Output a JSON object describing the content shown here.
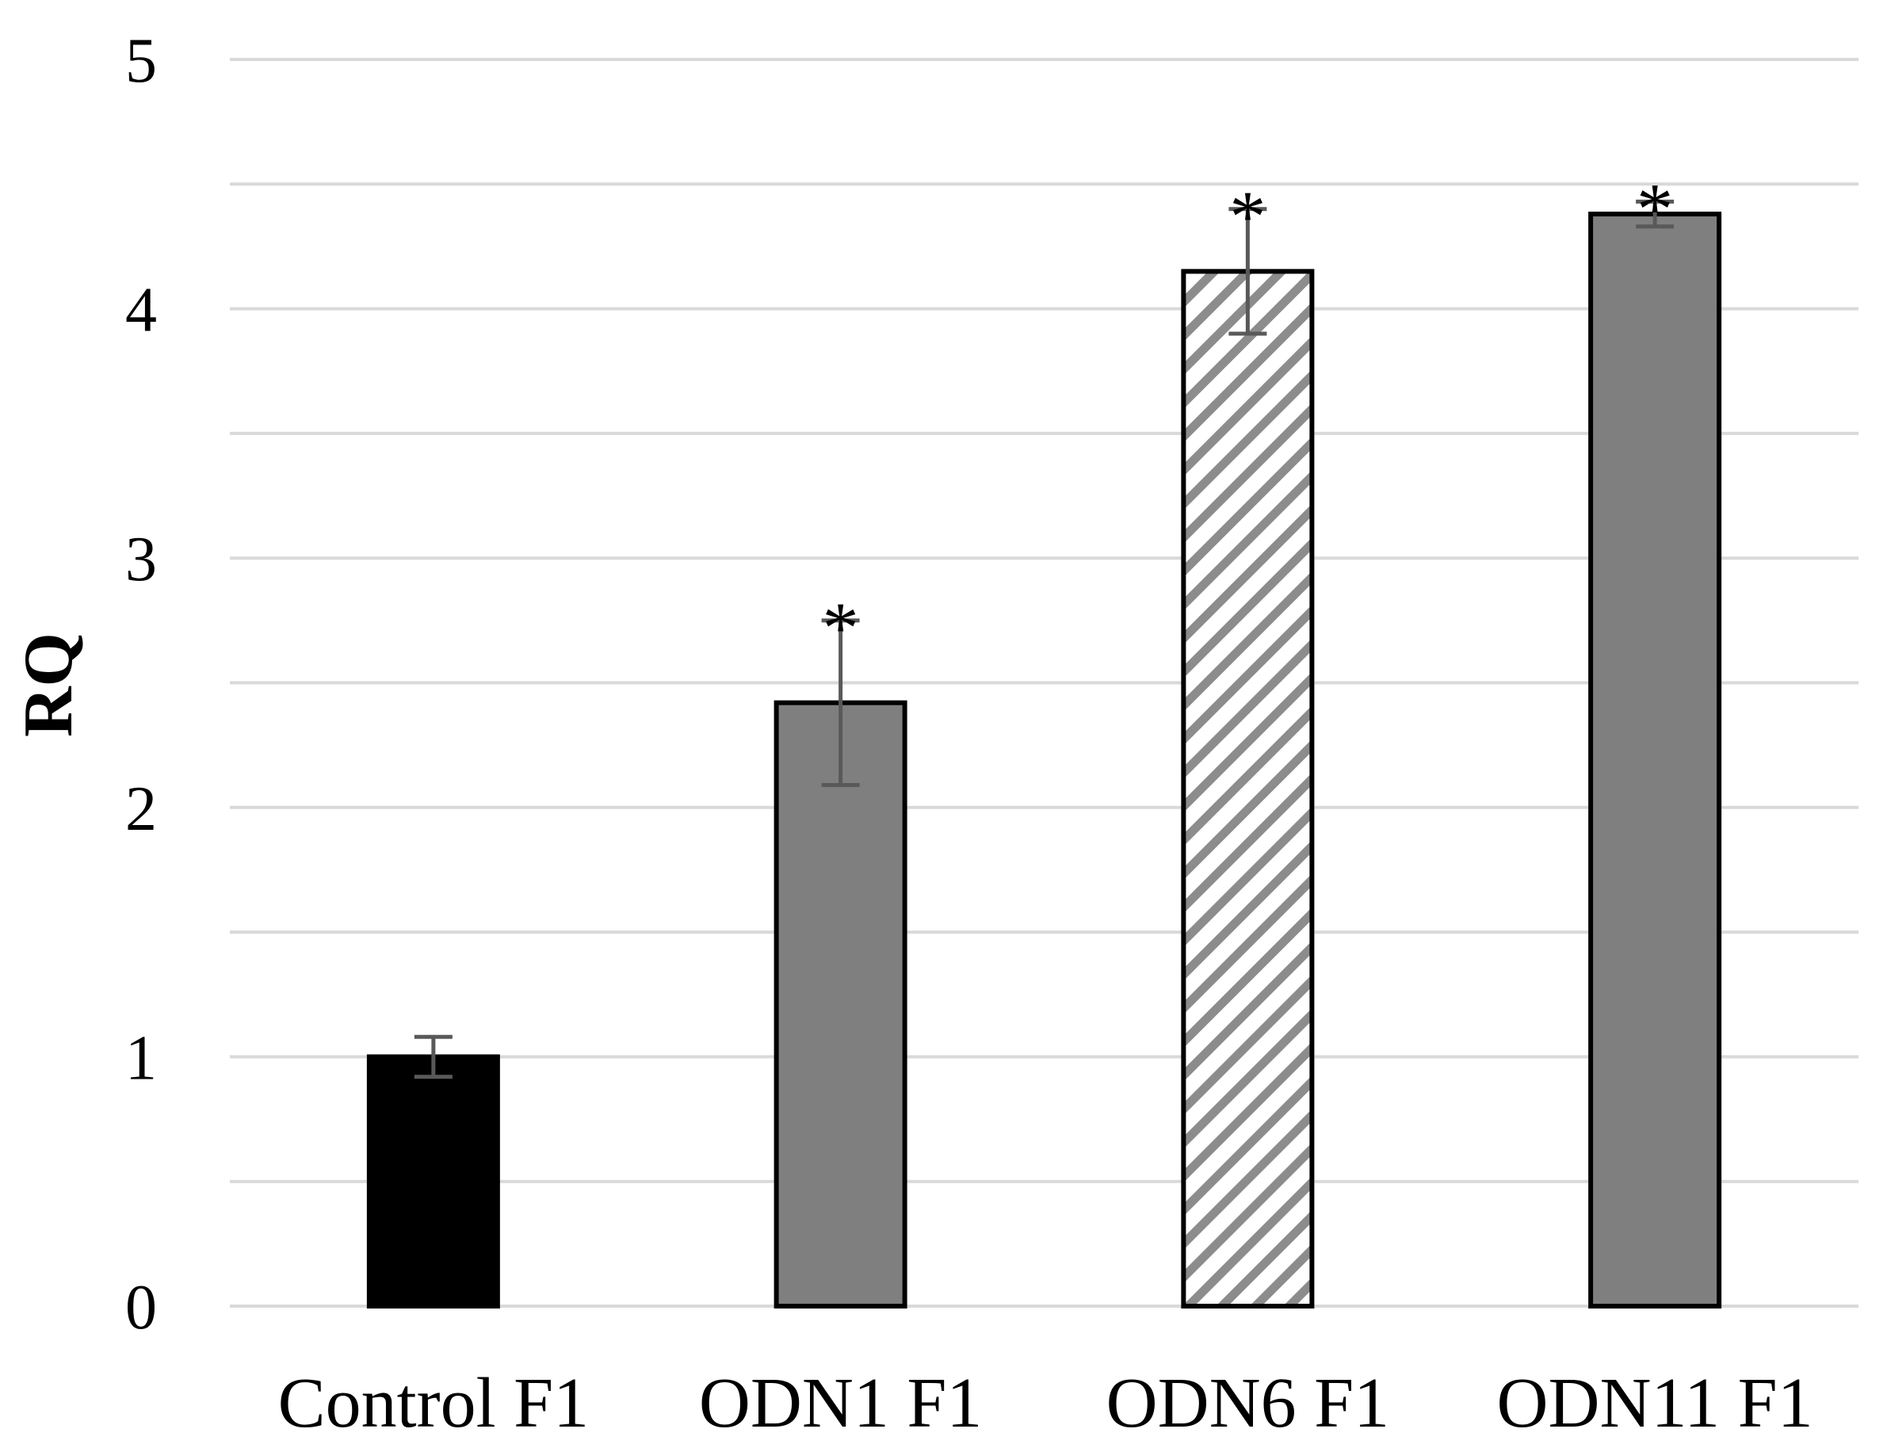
{
  "chart_data": {
    "type": "bar",
    "title": "",
    "xlabel": "",
    "ylabel": "RQ",
    "ylim": [
      0,
      5
    ],
    "yticks": [
      "0",
      "1",
      "2",
      "3",
      "4",
      "5"
    ],
    "grid": true,
    "categories": [
      "Control F1",
      "ODN1 F1",
      "ODN6 F1",
      "ODN11 F1"
    ],
    "values": [
      1.0,
      2.42,
      4.15,
      4.38
    ],
    "errors": [
      0.08,
      0.33,
      0.25,
      0.05
    ],
    "fills": [
      "solid-black",
      "solid-gray",
      "diagonal-hatch",
      "solid-gray"
    ],
    "significance": [
      "",
      "*",
      "*",
      "*"
    ],
    "colors": {
      "black": "#000000",
      "gray": "#7f7f7f",
      "hatch": "#8c8c8c",
      "grid": "#d9d9d9",
      "error_bar": "#595959"
    }
  }
}
